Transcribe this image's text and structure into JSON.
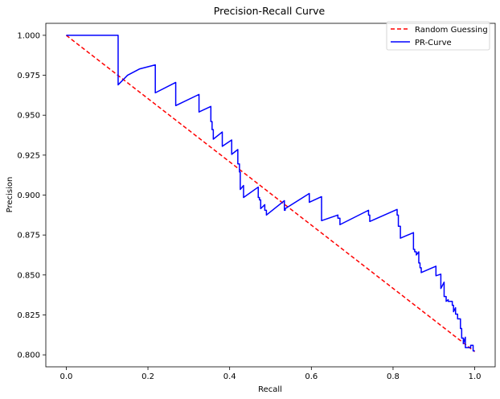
{
  "chart_data": {
    "type": "line",
    "title": "Precision-Recall Curve",
    "xlabel": "Recall",
    "ylabel": "Precision",
    "xlim": [
      -0.05,
      1.05
    ],
    "ylim": [
      0.7925,
      1.0075
    ],
    "xticks": [
      0.0,
      0.2,
      0.4,
      0.6,
      0.8,
      1.0
    ],
    "xtick_labels": [
      "0.0",
      "0.2",
      "0.4",
      "0.6",
      "0.8",
      "1.0"
    ],
    "yticks": [
      0.8,
      0.825,
      0.85,
      0.875,
      0.9,
      0.925,
      0.95,
      0.975,
      1.0
    ],
    "ytick_labels": [
      "0.800",
      "0.825",
      "0.850",
      "0.875",
      "0.900",
      "0.925",
      "0.950",
      "0.975",
      "1.000"
    ],
    "grid": false,
    "legend_position": "top-right",
    "series": [
      {
        "name": "Random Guessing",
        "color": "#ff0000",
        "style": "dashed",
        "x": [
          0.0,
          1.0
        ],
        "y": [
          1.0,
          0.802
        ]
      },
      {
        "name": "PR-Curve",
        "color": "#0000ff",
        "style": "solid",
        "x": [
          0.0,
          0.127,
          0.127,
          0.15,
          0.18,
          0.218,
          0.218,
          0.268,
          0.268,
          0.325,
          0.325,
          0.354,
          0.354,
          0.357,
          0.357,
          0.36,
          0.36,
          0.382,
          0.382,
          0.405,
          0.405,
          0.42,
          0.42,
          0.424,
          0.424,
          0.426,
          0.426,
          0.434,
          0.434,
          0.47,
          0.47,
          0.473,
          0.473,
          0.476,
          0.476,
          0.486,
          0.486,
          0.49,
          0.49,
          0.534,
          0.534,
          0.536,
          0.536,
          0.595,
          0.595,
          0.625,
          0.625,
          0.665,
          0.665,
          0.67,
          0.67,
          0.74,
          0.74,
          0.743,
          0.743,
          0.81,
          0.81,
          0.813,
          0.813,
          0.818,
          0.818,
          0.85,
          0.85,
          0.853,
          0.853,
          0.857,
          0.857,
          0.863,
          0.863,
          0.866,
          0.866,
          0.869,
          0.869,
          0.905,
          0.905,
          0.917,
          0.917,
          0.925,
          0.925,
          0.93,
          0.93,
          0.935,
          0.935,
          0.945,
          0.945,
          0.948,
          0.948,
          0.953,
          0.953,
          0.958,
          0.958,
          0.965,
          0.965,
          0.968,
          0.968,
          0.972,
          0.972,
          0.977,
          0.977,
          0.99,
          0.99,
          0.996,
          0.996,
          1.0
        ],
        "y": [
          1.0,
          1.0,
          0.969,
          0.975,
          0.979,
          0.9815,
          0.964,
          0.9705,
          0.956,
          0.963,
          0.952,
          0.9555,
          0.946,
          0.946,
          0.941,
          0.941,
          0.935,
          0.9395,
          0.9305,
          0.9345,
          0.9255,
          0.9285,
          0.9195,
          0.9195,
          0.9145,
          0.9145,
          0.9035,
          0.906,
          0.8985,
          0.905,
          0.8985,
          0.8985,
          0.897,
          0.897,
          0.8915,
          0.894,
          0.8905,
          0.8905,
          0.8875,
          0.8965,
          0.8905,
          0.8905,
          0.8915,
          0.901,
          0.8955,
          0.899,
          0.884,
          0.8875,
          0.8855,
          0.8855,
          0.8815,
          0.8905,
          0.8875,
          0.8875,
          0.8835,
          0.891,
          0.8875,
          0.8875,
          0.8805,
          0.8805,
          0.873,
          0.8765,
          0.866,
          0.866,
          0.8645,
          0.8645,
          0.8625,
          0.8645,
          0.8575,
          0.8575,
          0.8545,
          0.8545,
          0.8515,
          0.8555,
          0.8495,
          0.8505,
          0.8415,
          0.8455,
          0.8365,
          0.8365,
          0.8335,
          0.8345,
          0.8335,
          0.8335,
          0.831,
          0.831,
          0.827,
          0.8295,
          0.8255,
          0.8255,
          0.8225,
          0.8225,
          0.8165,
          0.8165,
          0.8105,
          0.8105,
          0.807,
          0.811,
          0.8045,
          0.8045,
          0.806,
          0.806,
          0.8025,
          0.8025
        ]
      }
    ]
  }
}
